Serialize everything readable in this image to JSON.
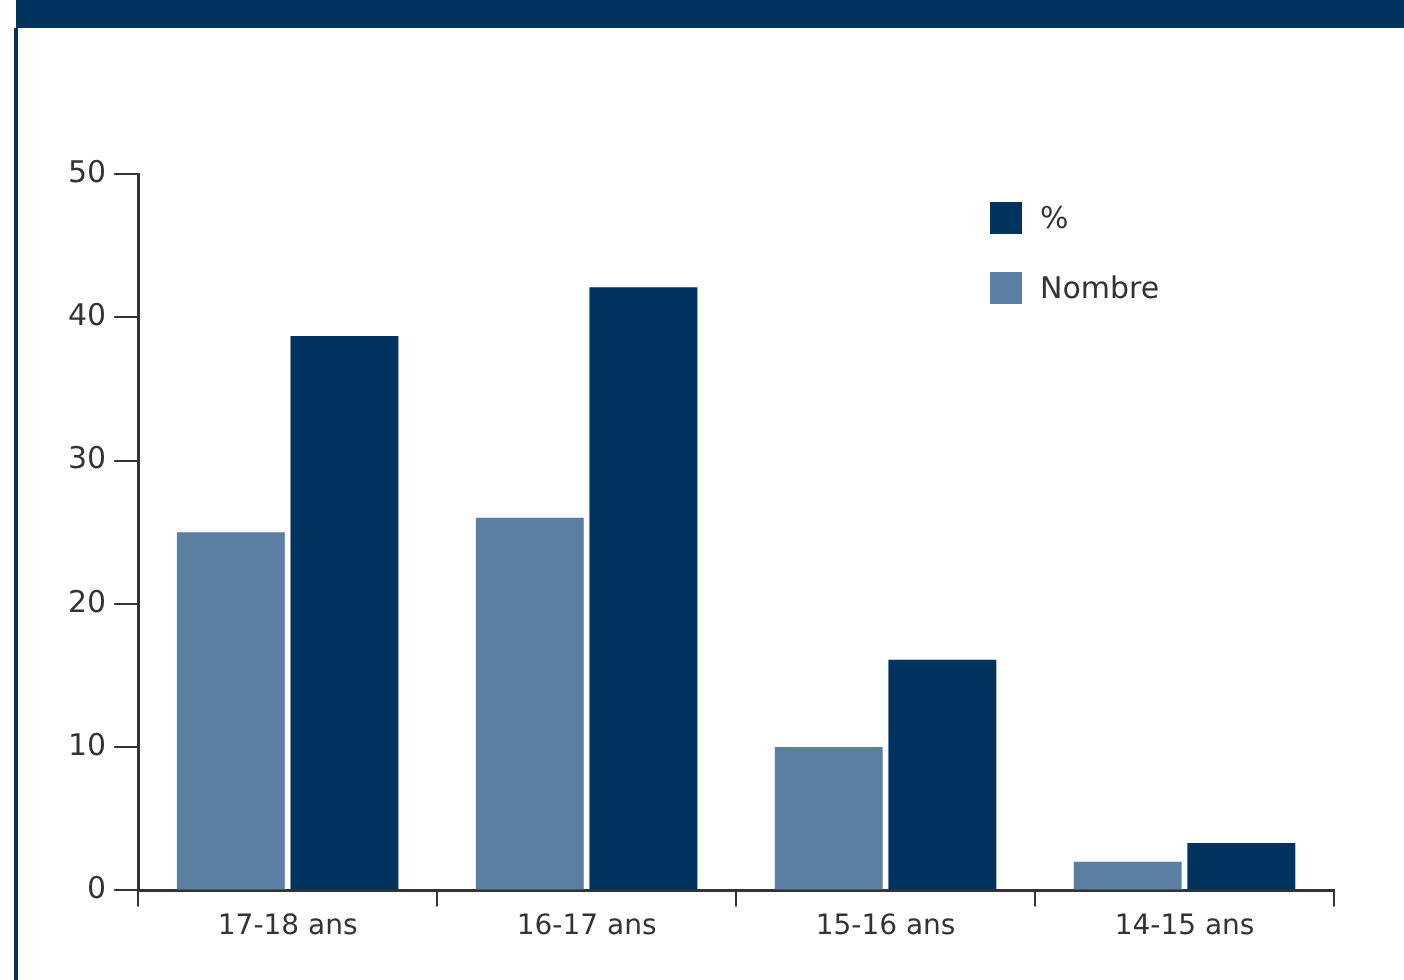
{
  "chart_data": {
    "type": "bar",
    "categories": [
      "17-18 ans",
      "16-17 ans",
      "15-16 ans",
      "14-15 ans"
    ],
    "series": [
      {
        "name": "Nombre",
        "color": "#5b7ea3",
        "values": [
          25,
          26,
          10,
          2
        ]
      },
      {
        "name": "%",
        "color": "#00335e",
        "values": [
          38.7,
          42.1,
          16.1,
          3.3
        ]
      }
    ],
    "ylim": [
      0,
      50
    ],
    "yticks": [
      0,
      10,
      20,
      30,
      40,
      50
    ],
    "grid": false,
    "legend": "top right"
  }
}
